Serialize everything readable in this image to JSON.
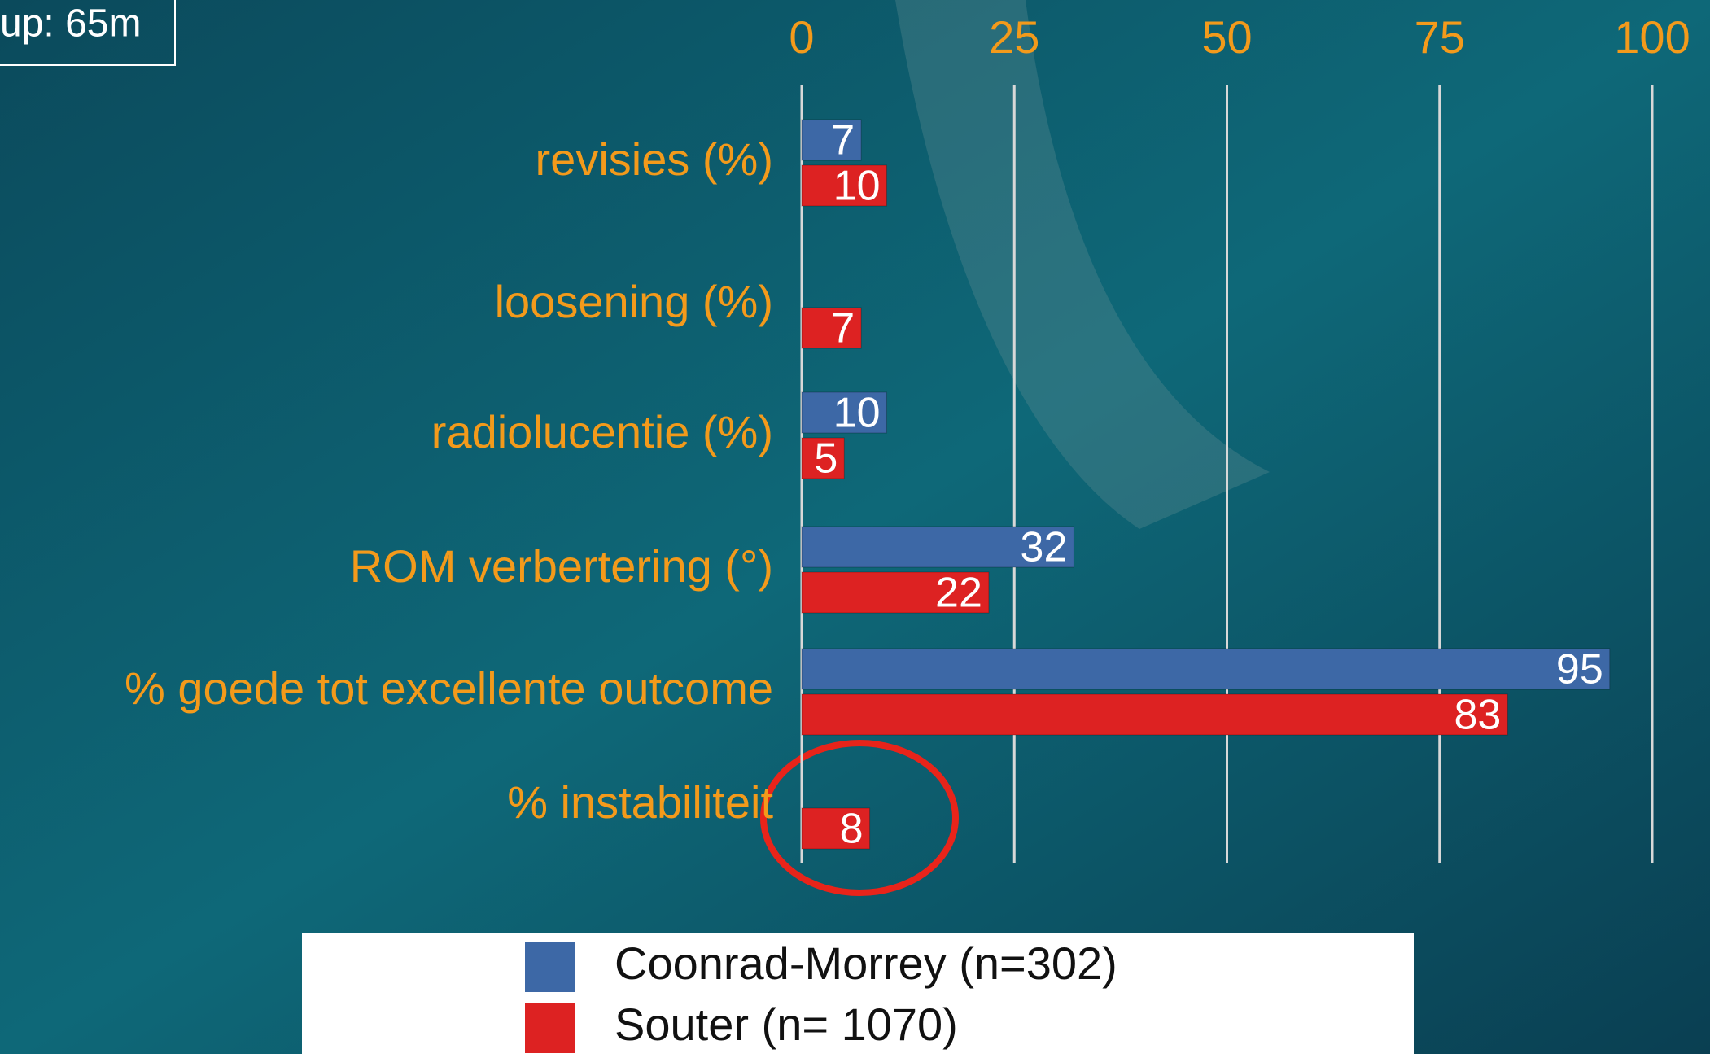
{
  "chart_data": {
    "type": "hbar",
    "annotation": "up: 65m",
    "categories": [
      "revisies (%)",
      "loosening (%)",
      "radiolucentie (%)",
      "ROM verbertering (°)",
      "% goede tot excellente outcome",
      "% instabiliteit"
    ],
    "series": [
      {
        "name": "Coonrad-Morrey (n=302)",
        "color": "#3d68a6",
        "values": [
          7,
          null,
          10,
          32,
          95,
          null
        ]
      },
      {
        "name": "Souter (n= 1070)",
        "color": "#dd2222",
        "values": [
          10,
          7,
          5,
          22,
          83,
          8
        ]
      }
    ],
    "xlim": [
      0,
      100
    ],
    "xticks": [
      0,
      25,
      50,
      75,
      100
    ],
    "grid": true
  }
}
